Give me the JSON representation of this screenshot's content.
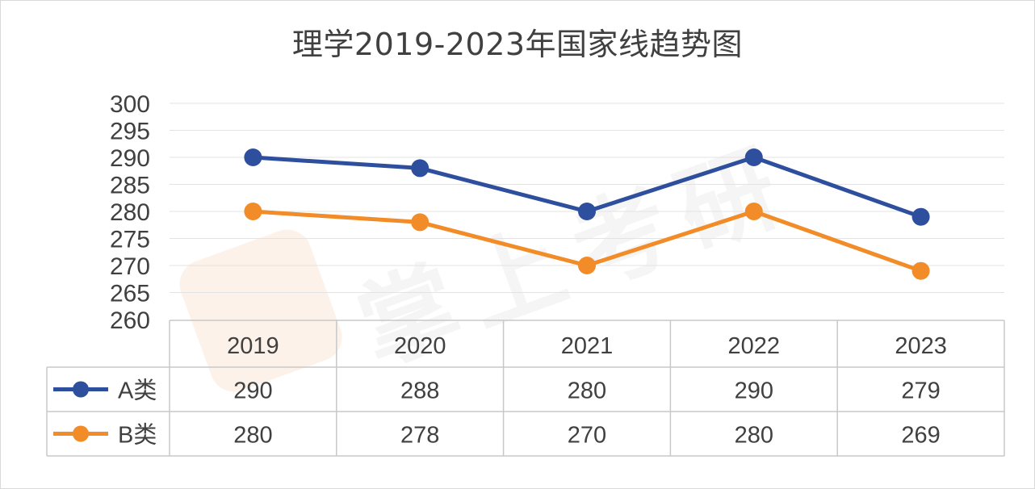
{
  "watermark_text": "掌上考研",
  "chart_data": {
    "type": "line",
    "title": "理学2019-2023年国家线趋势图",
    "categories": [
      "2019",
      "2020",
      "2021",
      "2022",
      "2023"
    ],
    "series": [
      {
        "name": "A类",
        "color": "#2E4F9E",
        "values": [
          290,
          288,
          280,
          290,
          279
        ]
      },
      {
        "name": "B类",
        "color": "#F28C28",
        "values": [
          280,
          278,
          270,
          280,
          269
        ]
      }
    ],
    "ylim": [
      260,
      300
    ],
    "yticks": [
      260,
      265,
      270,
      275,
      280,
      285,
      290,
      295,
      300
    ],
    "grid": true,
    "legend": "data-table",
    "xlabel": "",
    "ylabel": ""
  }
}
